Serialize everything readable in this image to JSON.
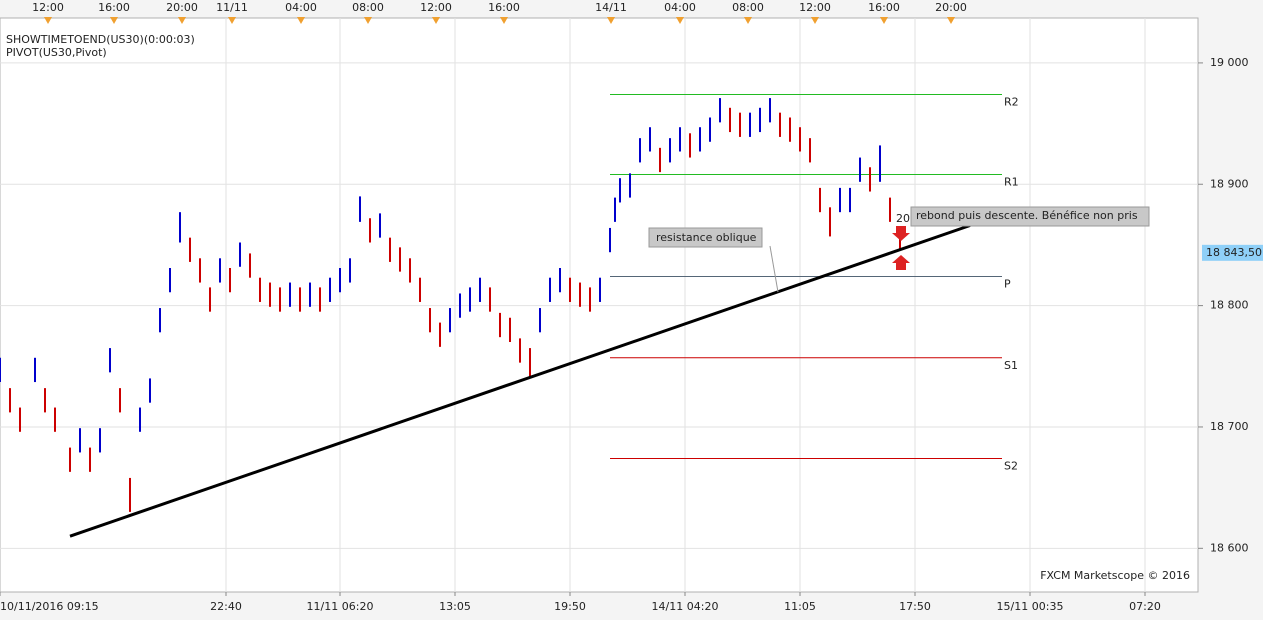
{
  "chart_data": {
    "type": "hilo",
    "indicators": [
      "SHOWTIMETOEND(US30)(0:00:03)",
      "PIVOT(US30,Pivot)"
    ],
    "watermark": "FXCM Marketscope © 2016",
    "up_color": "#0000cc",
    "down_color": "#cc0000",
    "x": [
      0,
      10,
      20,
      35,
      45,
      55,
      70,
      80,
      90,
      100,
      110,
      120,
      130,
      140,
      150,
      160,
      170,
      180,
      190,
      200,
      210,
      220,
      230,
      240,
      250,
      260,
      270,
      280,
      290,
      300,
      310,
      320,
      330,
      340,
      350,
      360,
      370,
      380,
      390,
      400,
      410,
      420,
      430,
      440,
      450,
      460,
      470,
      480,
      490,
      500,
      510,
      520,
      530,
      540,
      550,
      560,
      570,
      580,
      590,
      600,
      610,
      615,
      620,
      630,
      640,
      650,
      660,
      670,
      680,
      690,
      700,
      710,
      720,
      730,
      740,
      750,
      760,
      770,
      780,
      790,
      800,
      810,
      820,
      830,
      840,
      850,
      860,
      870,
      880,
      890,
      900
    ],
    "high": [
      18757,
      18732,
      18716,
      18757,
      18732,
      18716,
      18683,
      18699,
      18683,
      18699,
      18765,
      18732,
      18658,
      18716,
      18740,
      18798,
      18831,
      18877,
      18856,
      18839,
      18815,
      18839,
      18831,
      18852,
      18843,
      18823,
      18819,
      18815,
      18819,
      18815,
      18819,
      18815,
      18823,
      18831,
      18839,
      18890,
      18872,
      18876,
      18856,
      18848,
      18839,
      18823,
      18798,
      18786,
      18798,
      18810,
      18815,
      18823,
      18815,
      18794,
      18790,
      18773,
      18765,
      18798,
      18823,
      18831,
      18823,
      18819,
      18815,
      18823,
      18864,
      18889,
      18905,
      18909,
      18938,
      18947,
      18930,
      18938,
      18947,
      18942,
      18947,
      18955,
      18971,
      18963,
      18959,
      18959,
      18963,
      18971,
      18959,
      18955,
      18947,
      18938,
      18897,
      18881,
      18897,
      18897,
      18922,
      18914,
      18932,
      18889,
      18864
    ],
    "low": [
      18737,
      18712,
      18696,
      18737,
      18712,
      18696,
      18663,
      18679,
      18663,
      18679,
      18745,
      18712,
      18630,
      18696,
      18720,
      18778,
      18811,
      18852,
      18836,
      18819,
      18795,
      18819,
      18811,
      18832,
      18823,
      18803,
      18799,
      18795,
      18799,
      18795,
      18799,
      18795,
      18803,
      18811,
      18819,
      18869,
      18852,
      18856,
      18836,
      18828,
      18819,
      18803,
      18778,
      18766,
      18778,
      18790,
      18795,
      18803,
      18795,
      18774,
      18770,
      18753,
      18741,
      18778,
      18803,
      18811,
      18803,
      18799,
      18795,
      18803,
      18844,
      18869,
      18885,
      18889,
      18918,
      18927,
      18910,
      18918,
      18927,
      18922,
      18927,
      18935,
      18951,
      18943,
      18939,
      18939,
      18943,
      18951,
      18939,
      18935,
      18927,
      18918,
      18877,
      18857,
      18877,
      18877,
      18902,
      18894,
      18902,
      18869,
      18847
    ],
    "xlim": [
      0,
      1198
    ],
    "xticks": [
      {
        "value": 0,
        "label": "10/11/2016 09:15"
      },
      {
        "value": 226,
        "label": "22:40"
      },
      {
        "value": 340,
        "label": "11/11 06:20"
      },
      {
        "value": 455,
        "label": "13:05"
      },
      {
        "value": 570,
        "label": "19:50"
      },
      {
        "value": 685,
        "label": "14/11 04:20"
      },
      {
        "value": 800,
        "label": "11:05"
      },
      {
        "value": 915,
        "label": "17:50"
      },
      {
        "value": 1030,
        "label": "15/11 00:35"
      },
      {
        "value": 1145,
        "label": "07:20"
      }
    ],
    "x2ticks": [
      {
        "value": 48,
        "label": "12:00"
      },
      {
        "value": 114,
        "label": "16:00"
      },
      {
        "value": 182,
        "label": "20:00"
      },
      {
        "value": 232,
        "label": "11/11"
      },
      {
        "value": 301,
        "label": "04:00"
      },
      {
        "value": 368,
        "label": "08:00"
      },
      {
        "value": 436,
        "label": "12:00"
      },
      {
        "value": 504,
        "label": "16:00"
      },
      {
        "value": 611,
        "label": "14/11"
      },
      {
        "value": 680,
        "label": "04:00"
      },
      {
        "value": 748,
        "label": "08:00"
      },
      {
        "value": 815,
        "label": "12:00"
      },
      {
        "value": 884,
        "label": "16:00"
      },
      {
        "value": 951,
        "label": "20:00"
      }
    ],
    "ylim": [
      18564,
      19037
    ],
    "yticks": [
      {
        "value": 18600,
        "label": "18 600"
      },
      {
        "value": 18700,
        "label": "18 700"
      },
      {
        "value": 18800,
        "label": "18 800"
      },
      {
        "value": 18900,
        "label": "18 900"
      },
      {
        "value": 19000,
        "label": "19 000"
      }
    ],
    "grid": true,
    "last_price": {
      "value": 18843.5,
      "label": "18 843,50"
    },
    "pivot_x": [
      610,
      1002
    ],
    "pivots": [
      {
        "name": "R2",
        "value": 18974,
        "color": "#22bb22"
      },
      {
        "name": "R1",
        "value": 18908,
        "color": "#22bb22"
      },
      {
        "name": "P",
        "value": 18824,
        "color": "#556677"
      },
      {
        "name": "S1",
        "value": 18757,
        "color": "#cc0000"
      },
      {
        "name": "S2",
        "value": 18674,
        "color": "#cc0000"
      }
    ],
    "trendline": {
      "x": [
        70,
        970
      ],
      "y": [
        18610,
        18866
      ]
    },
    "annotations": [
      "resistance oblique",
      "rebond puis descente. Bénéfice non pris"
    ],
    "trade_label": "20"
  }
}
